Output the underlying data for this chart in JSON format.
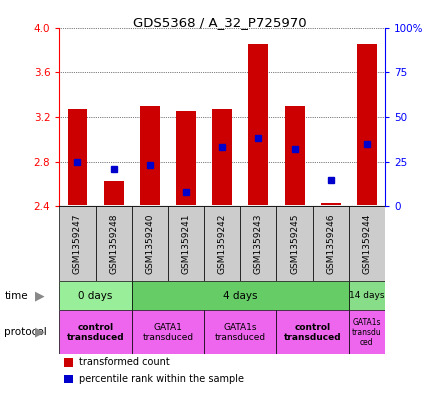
{
  "title": "GDS5368 / A_32_P725970",
  "samples": [
    "GSM1359247",
    "GSM1359248",
    "GSM1359240",
    "GSM1359241",
    "GSM1359242",
    "GSM1359243",
    "GSM1359245",
    "GSM1359246",
    "GSM1359244"
  ],
  "bar_bottoms": [
    2.41,
    2.41,
    2.41,
    2.41,
    2.41,
    2.41,
    2.41,
    2.41,
    2.41
  ],
  "bar_tops": [
    3.27,
    2.63,
    3.3,
    3.25,
    3.27,
    3.85,
    3.3,
    2.43,
    3.85
  ],
  "percentile_vals": [
    25,
    21,
    23,
    8,
    33,
    38,
    32,
    15,
    35
  ],
  "ylim": [
    2.4,
    4.0
  ],
  "y2lim": [
    0,
    100
  ],
  "yticks": [
    2.4,
    2.8,
    3.2,
    3.6,
    4.0
  ],
  "y2ticks": [
    0,
    25,
    50,
    75,
    100
  ],
  "y2ticklabels": [
    "0",
    "25",
    "50",
    "75",
    "100%"
  ],
  "bar_color": "#cc0000",
  "dot_color": "#0000cc",
  "bg_color": "#ffffff",
  "plot_bg": "#ffffff",
  "sample_bg": "#cccccc",
  "time_colors": [
    "#99ee99",
    "#66cc66",
    "#88dd88"
  ],
  "protocol_color": "#ee66ee",
  "time_groups": [
    {
      "label": "0 days",
      "start": 0,
      "end": 2
    },
    {
      "label": "4 days",
      "start": 2,
      "end": 8
    },
    {
      "label": "14 days",
      "start": 8,
      "end": 9
    }
  ],
  "protocol_groups": [
    {
      "label": "control\ntransduced",
      "start": 0,
      "end": 2,
      "bold": true
    },
    {
      "label": "GATA1\ntransduced",
      "start": 2,
      "end": 4,
      "bold": false
    },
    {
      "label": "GATA1s\ntransduced",
      "start": 4,
      "end": 6,
      "bold": false
    },
    {
      "label": "control\ntransduced",
      "start": 6,
      "end": 8,
      "bold": true
    },
    {
      "label": "GATA1s\ntransdu\nced",
      "start": 8,
      "end": 9,
      "bold": false
    }
  ],
  "legend_items": [
    {
      "color": "#cc0000",
      "label": "transformed count"
    },
    {
      "color": "#0000cc",
      "label": "percentile rank within the sample"
    }
  ]
}
